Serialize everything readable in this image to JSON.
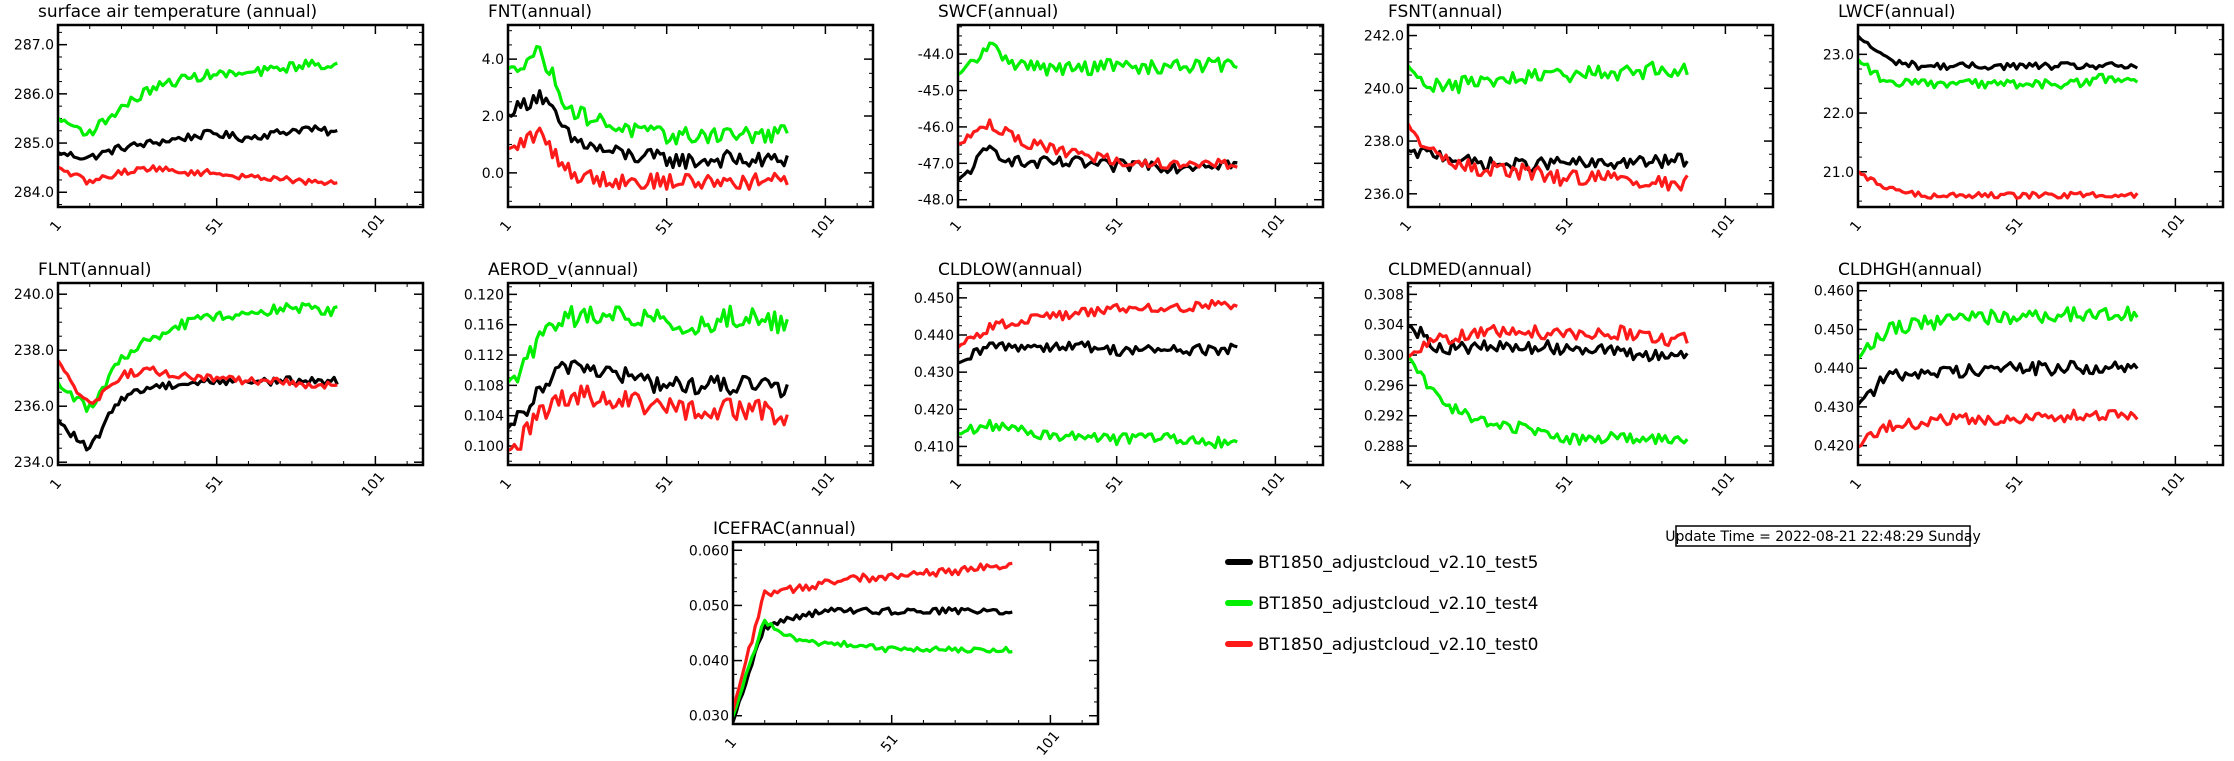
{
  "colors": {
    "test5": "#000000",
    "test4": "#00ee00",
    "test0": "#ff1a1a"
  },
  "legend": [
    {
      "label": "BT1850_adjustcloud_v2.10_test5",
      "color": "#000000"
    },
    {
      "label": "BT1850_adjustcloud_v2.10_test4",
      "color": "#00ee00"
    },
    {
      "label": "BT1850_adjustcloud_v2.10_test0",
      "color": "#ff1a1a"
    }
  ],
  "update_time": "Update Time = 2022-08-21 22:48:29 Sunday",
  "chart_data": [
    {
      "type": "line",
      "title": "surface air temperature (annual)",
      "xlim": [
        1,
        116
      ],
      "xticks": [
        "1",
        "51",
        "101"
      ],
      "ylim": [
        283.7,
        287.4
      ],
      "yticks": [
        284.0,
        285.0,
        286.0,
        287.0
      ],
      "ytick_labels": [
        "284.0",
        "285.0",
        "286.0",
        "287.0"
      ],
      "series": [
        {
          "name": "BT1850_adjustcloud_v2.10_test5",
          "values": [
            284.8,
            284.7,
            284.9,
            285.0,
            285.1,
            285.2,
            285.1,
            285.2,
            285.3,
            285.2
          ],
          "noise": 0.08
        },
        {
          "name": "BT1850_adjustcloud_v2.10_test4",
          "values": [
            285.5,
            285.2,
            285.7,
            286.1,
            286.3,
            286.4,
            286.4,
            286.5,
            286.6,
            286.6
          ],
          "noise": 0.1
        },
        {
          "name": "BT1850_adjustcloud_v2.10_test0",
          "values": [
            284.5,
            284.2,
            284.4,
            284.5,
            284.4,
            284.4,
            284.3,
            284.3,
            284.2,
            284.2
          ],
          "noise": 0.06
        }
      ]
    },
    {
      "type": "line",
      "title": "FNT(annual)",
      "xlim": [
        1,
        116
      ],
      "xticks": [
        "1",
        "51",
        "101"
      ],
      "ylim": [
        -1.2,
        5.2
      ],
      "yticks": [
        0,
        2,
        4
      ],
      "ytick_labels": [
        "0.0",
        "2.0",
        "4.0"
      ],
      "series": [
        {
          "name": "BT1850_adjustcloud_v2.10_test5",
          "values": [
            2.0,
            2.8,
            1.2,
            0.8,
            0.6,
            0.5,
            0.4,
            0.5,
            0.4,
            0.5
          ],
          "noise": 0.3
        },
        {
          "name": "BT1850_adjustcloud_v2.10_test4",
          "values": [
            3.6,
            4.3,
            2.2,
            1.8,
            1.5,
            1.3,
            1.3,
            1.4,
            1.3,
            1.4
          ],
          "noise": 0.3
        },
        {
          "name": "BT1850_adjustcloud_v2.10_test0",
          "values": [
            0.8,
            1.4,
            0.0,
            -0.2,
            -0.3,
            -0.3,
            -0.3,
            -0.3,
            -0.3,
            -0.3
          ],
          "noise": 0.3
        }
      ]
    },
    {
      "type": "line",
      "title": "SWCF(annual)",
      "xlim": [
        1,
        116
      ],
      "xticks": [
        "1",
        "51",
        "101"
      ],
      "ylim": [
        -48.2,
        -43.2
      ],
      "yticks": [
        -48,
        -47,
        -46,
        -45,
        -44
      ],
      "ytick_labels": [
        "-48.0",
        "-47.0",
        "-46.0",
        "-45.0",
        "-44.0"
      ],
      "series": [
        {
          "name": "BT1850_adjustcloud_v2.10_test5",
          "values": [
            -47.5,
            -46.6,
            -47.0,
            -47.0,
            -47.0,
            -47.1,
            -47.0,
            -47.1,
            -47.0,
            -47.0
          ],
          "noise": 0.18
        },
        {
          "name": "BT1850_adjustcloud_v2.10_test4",
          "values": [
            -44.6,
            -43.8,
            -44.3,
            -44.4,
            -44.4,
            -44.3,
            -44.4,
            -44.3,
            -44.3,
            -44.3
          ],
          "noise": 0.2
        },
        {
          "name": "BT1850_adjustcloud_v2.10_test0",
          "values": [
            -46.5,
            -45.9,
            -46.4,
            -46.6,
            -46.8,
            -46.9,
            -47.0,
            -47.0,
            -47.0,
            -47.0
          ],
          "noise": 0.15
        }
      ]
    },
    {
      "type": "line",
      "title": "FSNT(annual)",
      "xlim": [
        1,
        116
      ],
      "xticks": [
        "1",
        "51",
        "101"
      ],
      "ylim": [
        235.5,
        242.4
      ],
      "yticks": [
        236,
        238,
        240,
        242
      ],
      "ytick_labels": [
        "236.0",
        "238.0",
        "240.0",
        "242.0"
      ],
      "series": [
        {
          "name": "BT1850_adjustcloud_v2.10_test5",
          "values": [
            237.6,
            237.5,
            237.2,
            237.1,
            237.1,
            237.2,
            237.1,
            237.2,
            237.2,
            237.3
          ],
          "noise": 0.25
        },
        {
          "name": "BT1850_adjustcloud_v2.10_test4",
          "values": [
            240.8,
            240.0,
            240.2,
            240.3,
            240.4,
            240.5,
            240.6,
            240.6,
            240.7,
            240.7
          ],
          "noise": 0.3
        },
        {
          "name": "BT1850_adjustcloud_v2.10_test0",
          "values": [
            238.6,
            237.3,
            237.0,
            236.9,
            236.8,
            236.6,
            236.6,
            236.5,
            236.4,
            236.4
          ],
          "noise": 0.3
        }
      ]
    },
    {
      "type": "line",
      "title": "LWCF(annual)",
      "xlim": [
        1,
        116
      ],
      "xticks": [
        "1",
        "51",
        "101"
      ],
      "ylim": [
        20.4,
        23.5
      ],
      "yticks": [
        21.0,
        22.0,
        23.0
      ],
      "ytick_labels": [
        "21.0",
        "22.0",
        "23.0"
      ],
      "series": [
        {
          "name": "BT1850_adjustcloud_v2.10_test5",
          "values": [
            23.3,
            22.9,
            22.8,
            22.8,
            22.8,
            22.8,
            22.8,
            22.8,
            22.8,
            22.8
          ],
          "noise": 0.06
        },
        {
          "name": "BT1850_adjustcloud_v2.10_test4",
          "values": [
            22.9,
            22.5,
            22.5,
            22.5,
            22.5,
            22.5,
            22.5,
            22.5,
            22.6,
            22.6
          ],
          "noise": 0.08
        },
        {
          "name": "BT1850_adjustcloud_v2.10_test0",
          "values": [
            21.0,
            20.7,
            20.6,
            20.6,
            20.6,
            20.6,
            20.6,
            20.6,
            20.6,
            20.6
          ],
          "noise": 0.05
        }
      ]
    },
    {
      "type": "line",
      "title": "FLNT(annual)",
      "xlim": [
        1,
        116
      ],
      "xticks": [
        "1",
        "51",
        "101"
      ],
      "ylim": [
        233.9,
        240.4
      ],
      "yticks": [
        234,
        236,
        238,
        240
      ],
      "ytick_labels": [
        "234.0",
        "236.0",
        "238.0",
        "240.0"
      ],
      "series": [
        {
          "name": "BT1850_adjustcloud_v2.10_test5",
          "values": [
            235.5,
            234.4,
            236.3,
            236.7,
            236.8,
            236.9,
            236.9,
            236.9,
            236.9,
            236.9
          ],
          "noise": 0.15
        },
        {
          "name": "BT1850_adjustcloud_v2.10_test4",
          "values": [
            236.8,
            235.9,
            237.6,
            238.4,
            238.9,
            239.2,
            239.3,
            239.5,
            239.5,
            239.4
          ],
          "noise": 0.2
        },
        {
          "name": "BT1850_adjustcloud_v2.10_test0",
          "values": [
            237.6,
            236.0,
            237.1,
            237.3,
            237.1,
            237.0,
            236.9,
            236.9,
            236.8,
            236.7
          ],
          "noise": 0.15
        }
      ]
    },
    {
      "type": "line",
      "title": "AEROD_v(annual)",
      "xlim": [
        1,
        116
      ],
      "xticks": [
        "1",
        "51",
        "101"
      ],
      "ylim": [
        0.0975,
        0.1215
      ],
      "yticks": [
        0.1,
        0.104,
        0.108,
        0.112,
        0.116,
        0.12
      ],
      "ytick_labels": [
        "0.100",
        "0.104",
        "0.108",
        "0.112",
        "0.116",
        "0.120"
      ],
      "series": [
        {
          "name": "BT1850_adjustcloud_v2.10_test5",
          "values": [
            0.102,
            0.107,
            0.111,
            0.11,
            0.109,
            0.108,
            0.108,
            0.108,
            0.108,
            0.107
          ],
          "noise": 0.0013
        },
        {
          "name": "BT1850_adjustcloud_v2.10_test4",
          "values": [
            0.108,
            0.114,
            0.117,
            0.117,
            0.117,
            0.117,
            0.116,
            0.117,
            0.117,
            0.116
          ],
          "noise": 0.0015
        },
        {
          "name": "BT1850_adjustcloud_v2.10_test0",
          "values": [
            0.099,
            0.104,
            0.107,
            0.106,
            0.106,
            0.105,
            0.105,
            0.105,
            0.105,
            0.104
          ],
          "noise": 0.0015
        }
      ]
    },
    {
      "type": "line",
      "title": "CLDLOW(annual)",
      "xlim": [
        1,
        116
      ],
      "xticks": [
        "1",
        "51",
        "101"
      ],
      "ylim": [
        0.405,
        0.454
      ],
      "yticks": [
        0.41,
        0.42,
        0.43,
        0.44,
        0.45
      ],
      "ytick_labels": [
        "0.410",
        "0.420",
        "0.430",
        "0.440",
        "0.450"
      ],
      "series": [
        {
          "name": "BT1850_adjustcloud_v2.10_test5",
          "values": [
            0.432,
            0.437,
            0.437,
            0.437,
            0.437,
            0.436,
            0.436,
            0.436,
            0.436,
            0.436
          ],
          "noise": 0.0015
        },
        {
          "name": "BT1850_adjustcloud_v2.10_test4",
          "values": [
            0.413,
            0.416,
            0.414,
            0.413,
            0.413,
            0.412,
            0.412,
            0.412,
            0.411,
            0.411
          ],
          "noise": 0.0015
        },
        {
          "name": "BT1850_adjustcloud_v2.10_test0",
          "values": [
            0.437,
            0.442,
            0.444,
            0.445,
            0.446,
            0.447,
            0.447,
            0.447,
            0.448,
            0.448
          ],
          "noise": 0.0013
        }
      ]
    },
    {
      "type": "line",
      "title": "CLDMED(annual)",
      "xlim": [
        1,
        116
      ],
      "xticks": [
        "1",
        "51",
        "101"
      ],
      "ylim": [
        0.2855,
        0.3095
      ],
      "yticks": [
        0.288,
        0.292,
        0.296,
        0.3,
        0.304,
        0.308
      ],
      "ytick_labels": [
        "0.288",
        "0.292",
        "0.296",
        "0.300",
        "0.304",
        "0.308"
      ],
      "series": [
        {
          "name": "BT1850_adjustcloud_v2.10_test5",
          "values": [
            0.304,
            0.301,
            0.301,
            0.301,
            0.301,
            0.301,
            0.301,
            0.3,
            0.3,
            0.3
          ],
          "noise": 0.0009
        },
        {
          "name": "BT1850_adjustcloud_v2.10_test4",
          "values": [
            0.3,
            0.294,
            0.292,
            0.291,
            0.29,
            0.289,
            0.289,
            0.289,
            0.289,
            0.289
          ],
          "noise": 0.0008
        },
        {
          "name": "BT1850_adjustcloud_v2.10_test0",
          "values": [
            0.3,
            0.302,
            0.303,
            0.303,
            0.303,
            0.303,
            0.303,
            0.303,
            0.302,
            0.302
          ],
          "noise": 0.0009
        }
      ]
    },
    {
      "type": "line",
      "title": "CLDHGH(annual)",
      "xlim": [
        1,
        116
      ],
      "xticks": [
        "1",
        "51",
        "101"
      ],
      "ylim": [
        0.415,
        0.462
      ],
      "yticks": [
        0.42,
        0.43,
        0.44,
        0.45,
        0.46
      ],
      "ytick_labels": [
        "0.420",
        "0.430",
        "0.440",
        "0.450",
        "0.460"
      ],
      "series": [
        {
          "name": "BT1850_adjustcloud_v2.10_test5",
          "values": [
            0.431,
            0.438,
            0.439,
            0.439,
            0.44,
            0.44,
            0.44,
            0.44,
            0.44,
            0.44
          ],
          "noise": 0.0018
        },
        {
          "name": "BT1850_adjustcloud_v2.10_test4",
          "values": [
            0.443,
            0.45,
            0.452,
            0.452,
            0.453,
            0.453,
            0.453,
            0.454,
            0.454,
            0.454
          ],
          "noise": 0.002
        },
        {
          "name": "BT1850_adjustcloud_v2.10_test0",
          "values": [
            0.42,
            0.425,
            0.426,
            0.427,
            0.427,
            0.427,
            0.427,
            0.428,
            0.428,
            0.428
          ],
          "noise": 0.0015
        }
      ]
    },
    {
      "type": "line",
      "title": "ICEFRAC(annual)",
      "xlim": [
        1,
        116
      ],
      "xticks": [
        "1",
        "51",
        "101"
      ],
      "ylim": [
        0.0285,
        0.0615
      ],
      "yticks": [
        0.03,
        0.04,
        0.05,
        0.06
      ],
      "ytick_labels": [
        "0.030",
        "0.040",
        "0.050",
        "0.060"
      ],
      "series": [
        {
          "name": "BT1850_adjustcloud_v2.10_test5",
          "values": [
            0.029,
            0.046,
            0.048,
            0.049,
            0.049,
            0.049,
            0.049,
            0.049,
            0.049,
            0.049
          ],
          "noise": 0.0006
        },
        {
          "name": "BT1850_adjustcloud_v2.10_test4",
          "values": [
            0.03,
            0.047,
            0.044,
            0.043,
            0.043,
            0.042,
            0.042,
            0.042,
            0.042,
            0.042
          ],
          "noise": 0.0005
        },
        {
          "name": "BT1850_adjustcloud_v2.10_test0",
          "values": [
            0.031,
            0.052,
            0.053,
            0.054,
            0.055,
            0.055,
            0.056,
            0.056,
            0.057,
            0.057
          ],
          "noise": 0.0007
        }
      ]
    }
  ]
}
